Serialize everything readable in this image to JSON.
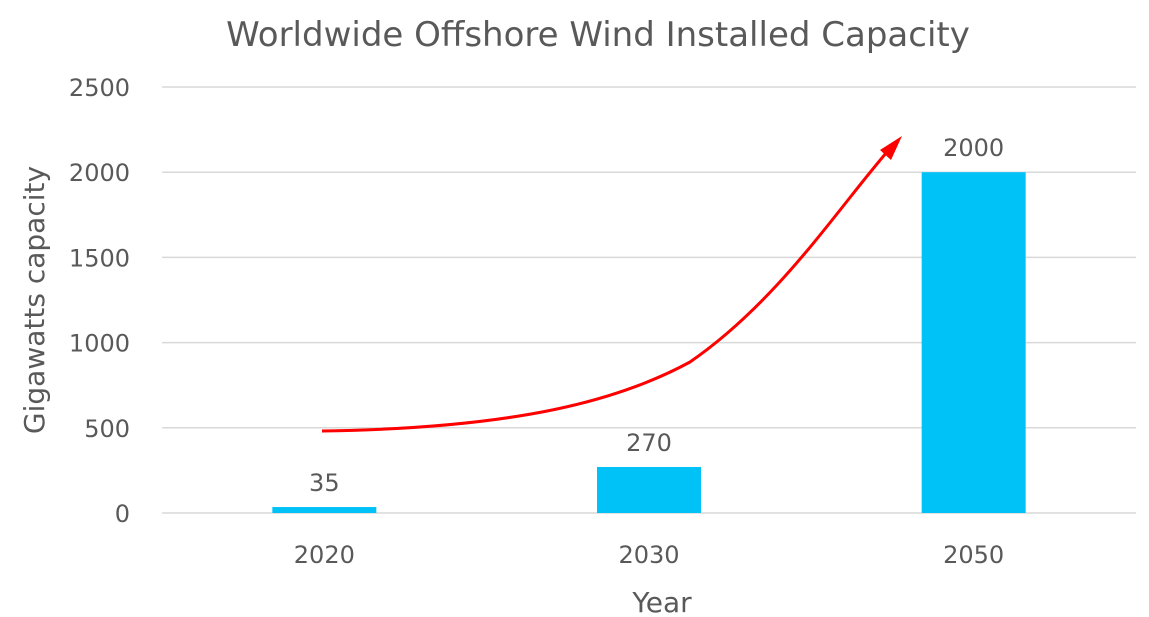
{
  "chart_data": {
    "type": "bar",
    "title": "Worldwide Offshore Wind Installed Capacity",
    "xlabel": "Year",
    "ylabel": "Gigawatts capacity",
    "categories": [
      "2020",
      "2030",
      "2050"
    ],
    "values": [
      35,
      270,
      2000
    ],
    "data_labels": [
      "35",
      "270",
      "2000"
    ],
    "ylim": [
      0,
      2500
    ],
    "yticks": [
      0,
      500,
      1000,
      1500,
      2000,
      2500
    ],
    "ytick_labels": [
      "0",
      "500",
      "1000",
      "1500",
      "2000",
      "2500"
    ],
    "grid": true,
    "legend": "none",
    "bar_color": "#00c2f7",
    "trend_arrow_color": "#ff0000"
  }
}
